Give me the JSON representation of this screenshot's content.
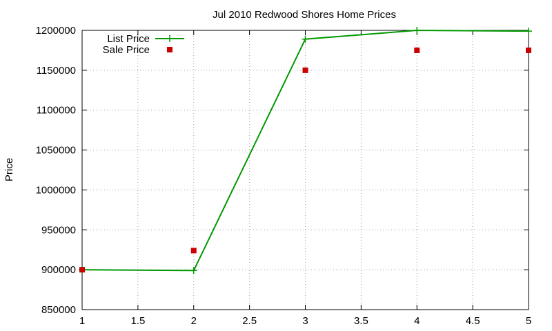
{
  "chart_data": {
    "type": "line",
    "title": "Jul 2010 Redwood Shores Home Prices",
    "xlabel": "",
    "ylabel": "Price",
    "xlim": [
      1,
      5
    ],
    "ylim": [
      850000,
      1200000
    ],
    "grid": true,
    "legend_position": "top-left",
    "x_ticks": [
      "1",
      "1.5",
      "2",
      "2.5",
      "3",
      "3.5",
      "4",
      "4.5",
      "5"
    ],
    "y_ticks": [
      "850000",
      "900000",
      "950000",
      "1000000",
      "1050000",
      "1100000",
      "1150000",
      "1200000"
    ],
    "series": [
      {
        "name": "List Price",
        "style": "linespoints",
        "color": "#009900",
        "x": [
          1,
          2,
          3,
          4,
          5
        ],
        "y": [
          900000,
          899000,
          1189000,
          1200000,
          1199000
        ]
      },
      {
        "name": "Sale Price",
        "style": "points",
        "color": "#cc0000",
        "x": [
          1,
          2,
          3,
          4,
          5
        ],
        "y": [
          900000,
          924000,
          1150000,
          1175000,
          1175000
        ]
      }
    ]
  }
}
